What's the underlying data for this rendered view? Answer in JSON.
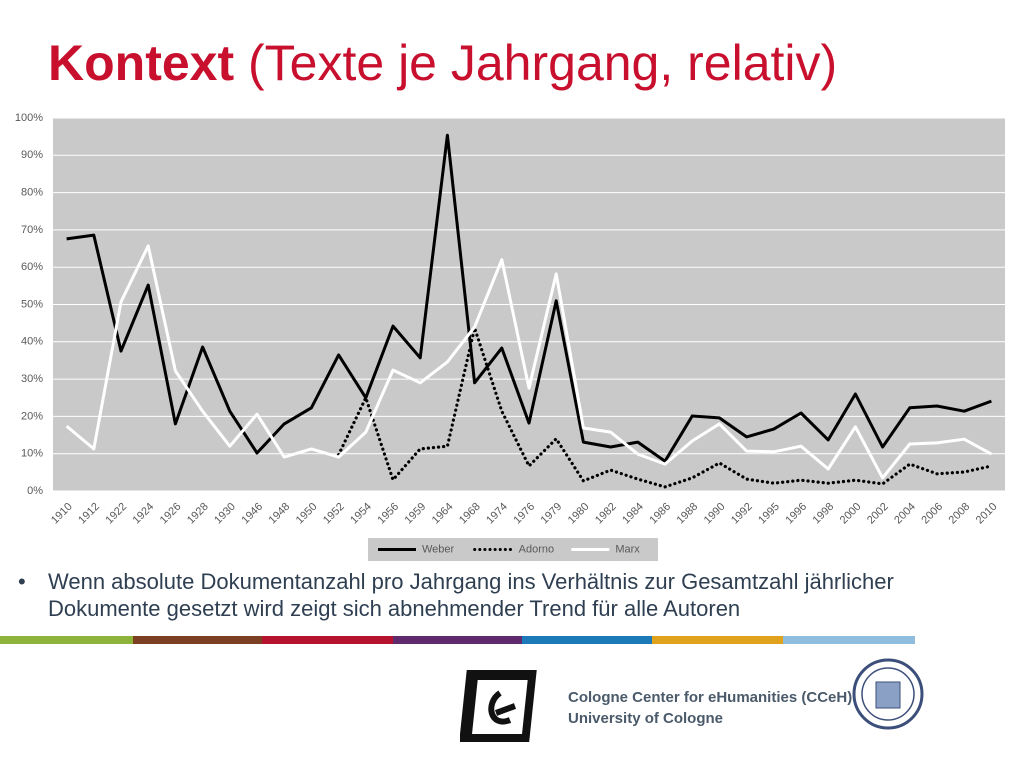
{
  "slide": {
    "title_bold": "Kontext",
    "title_rest": "(Texte je Jahrgang, relativ)",
    "bullet": "Wenn absolute Dokumentanzahl pro Jahrgang ins Verhältnis zur Gesamtzahl jährlicher Dokumente gesetzt wird zeigt sich abnehmender Trend für alle Autoren",
    "footer_line1": "Cologne Center for eHumanities (CCeH)",
    "footer_line2": "University of Cologne"
  },
  "chart_data": {
    "type": "line",
    "categories": [
      "1910",
      "1912",
      "1922",
      "1924",
      "1926",
      "1928",
      "1930",
      "1946",
      "1948",
      "1950",
      "1952",
      "1954",
      "1956",
      "1959",
      "1964",
      "1968",
      "1974",
      "1976",
      "1979",
      "1980",
      "1982",
      "1984",
      "1986",
      "1988",
      "1990",
      "1992",
      "1995",
      "1996",
      "1998",
      "2000",
      "2002",
      "2004",
      "2006",
      "2008",
      "2010"
    ],
    "series": [
      {
        "name": "Weber",
        "color": "#000000",
        "line_style": "solid",
        "values": [
          67.6,
          68.6,
          37.5,
          55.2,
          18,
          38.6,
          21.4,
          10.2,
          18,
          22.3,
          36.5,
          25,
          44.2,
          35.7,
          95.4,
          29,
          38.3,
          18.2,
          51,
          13.1,
          11.8,
          13.1,
          8,
          20.1,
          19.6,
          14.5,
          16.6,
          20.9,
          13.7,
          26,
          11.8,
          22.3,
          22.8,
          21.4,
          24.1
        ]
      },
      {
        "name": "Adorno",
        "color": "#000000",
        "line_style": "dotted",
        "values": [
          null,
          null,
          null,
          null,
          null,
          null,
          null,
          null,
          null,
          null,
          9.7,
          25,
          3,
          11.3,
          12,
          43.7,
          21.4,
          6.7,
          14,
          2.7,
          5.6,
          3.2,
          1.1,
          3.5,
          7.5,
          3.2,
          2.1,
          2.9,
          2.1,
          2.9,
          1.9,
          7.2,
          4.6,
          5.1,
          6.7
        ]
      },
      {
        "name": "Marx",
        "color": "#ffffff",
        "line_style": "solid",
        "values": [
          17.4,
          11.3,
          50.7,
          65.7,
          32.2,
          21.4,
          12,
          20.6,
          9.1,
          11.3,
          9.1,
          15.8,
          32.4,
          29,
          34.6,
          44,
          62,
          27.6,
          58.2,
          16.9,
          15.8,
          9.9,
          7.2,
          13.4,
          18,
          10.7,
          10.5,
          12,
          5.9,
          17.2,
          3.5,
          12.6,
          12.9,
          13.9,
          9.9
        ]
      }
    ],
    "ylim": [
      0,
      100
    ],
    "yticks": [
      {
        "value": 0,
        "label": "0%"
      },
      {
        "value": 10,
        "label": "10%"
      },
      {
        "value": 20,
        "label": "20%"
      },
      {
        "value": 30,
        "label": "30%"
      },
      {
        "value": 40,
        "label": "40%"
      },
      {
        "value": 50,
        "label": "50%"
      },
      {
        "value": 60,
        "label": "60%"
      },
      {
        "value": 70,
        "label": "70%"
      },
      {
        "value": 80,
        "label": "80%"
      },
      {
        "value": 90,
        "label": "90%"
      },
      {
        "value": 100,
        "label": "100%"
      }
    ],
    "grid": true,
    "plot_background": "#c9c9c9",
    "legend": "bottom"
  }
}
